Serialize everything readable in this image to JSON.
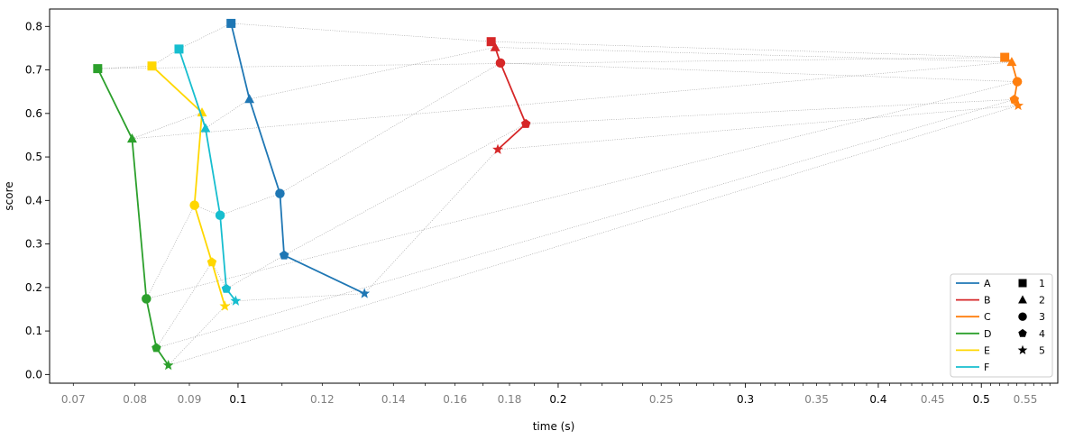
{
  "chart_data": {
    "type": "line",
    "xlabel": "time (s)",
    "ylabel": "score",
    "xscale": "log",
    "xlim": [
      0.0665,
      0.59
    ],
    "ylim": [
      -0.02,
      0.84
    ],
    "grid": false,
    "legend_placement": "lower-right",
    "x_major_ticks": [
      0.1,
      0.2,
      0.3,
      0.4,
      0.5
    ],
    "x_major_tick_labels": [
      "0.1",
      "0.2",
      "0.3",
      "0.4",
      "0.5"
    ],
    "x_minor_ticks": [
      0.07,
      0.08,
      0.09,
      0.12,
      0.14,
      0.16,
      0.18,
      0.25,
      0.35,
      0.45,
      0.55
    ],
    "x_minor_tick_labels": [
      "0.07",
      "0.08",
      "0.09",
      "0.12",
      "0.14",
      "0.16",
      "0.18",
      "0.25",
      "0.35",
      "0.45",
      "0.55"
    ],
    "x_minor_unlabeled": [
      0.11,
      0.13,
      0.15,
      0.17,
      0.19,
      0.21,
      0.22,
      0.23,
      0.24,
      0.26,
      0.27,
      0.28,
      0.29,
      0.31,
      0.32,
      0.33,
      0.34,
      0.36,
      0.37,
      0.38,
      0.39,
      0.41,
      0.42,
      0.43,
      0.44,
      0.46,
      0.47,
      0.48,
      0.49,
      0.51,
      0.52,
      0.53,
      0.54,
      0.56,
      0.57,
      0.58
    ],
    "y_ticks": [
      0.0,
      0.1,
      0.2,
      0.3,
      0.4,
      0.5,
      0.6,
      0.7,
      0.8
    ],
    "y_tick_labels": [
      "0.0",
      "0.1",
      "0.2",
      "0.3",
      "0.4",
      "0.5",
      "0.6",
      "0.7",
      "0.8"
    ],
    "markers_legend": [
      {
        "label": "1",
        "marker": "square"
      },
      {
        "label": "2",
        "marker": "triangle"
      },
      {
        "label": "3",
        "marker": "circle"
      },
      {
        "label": "4",
        "marker": "pentagon"
      },
      {
        "label": "5",
        "marker": "star"
      }
    ],
    "series": [
      {
        "name": "A",
        "color": "#1f77b4",
        "x": [
          0.0985,
          0.1025,
          0.1095,
          0.1105,
          0.1315
        ],
        "y": [
          0.807,
          0.633,
          0.416,
          0.274,
          0.186
        ]
      },
      {
        "name": "B",
        "color": "#d62728",
        "x": [
          0.173,
          0.1745,
          0.1765,
          0.1865,
          0.1755
        ],
        "y": [
          0.765,
          0.752,
          0.716,
          0.576,
          0.517
        ]
      },
      {
        "name": "C",
        "color": "#ff7f0e",
        "x": [
          0.526,
          0.534,
          0.5405,
          0.537,
          0.5415
        ],
        "y": [
          0.729,
          0.718,
          0.673,
          0.632,
          0.618
        ]
      },
      {
        "name": "D",
        "color": "#2ca02c",
        "x": [
          0.0738,
          0.0795,
          0.082,
          0.0838,
          0.086
        ],
        "y": [
          0.703,
          0.542,
          0.174,
          0.061,
          0.021
        ]
      },
      {
        "name": "E",
        "color": "#ffd700",
        "x": [
          0.083,
          0.0925,
          0.091,
          0.0945,
          0.0972
        ],
        "y": [
          0.709,
          0.602,
          0.389,
          0.258,
          0.157
        ]
      },
      {
        "name": "F",
        "color": "#17becf",
        "x": [
          0.088,
          0.0932,
          0.0962,
          0.0975,
          0.0995
        ],
        "y": [
          0.748,
          0.566,
          0.366,
          0.197,
          0.169
        ]
      }
    ]
  }
}
